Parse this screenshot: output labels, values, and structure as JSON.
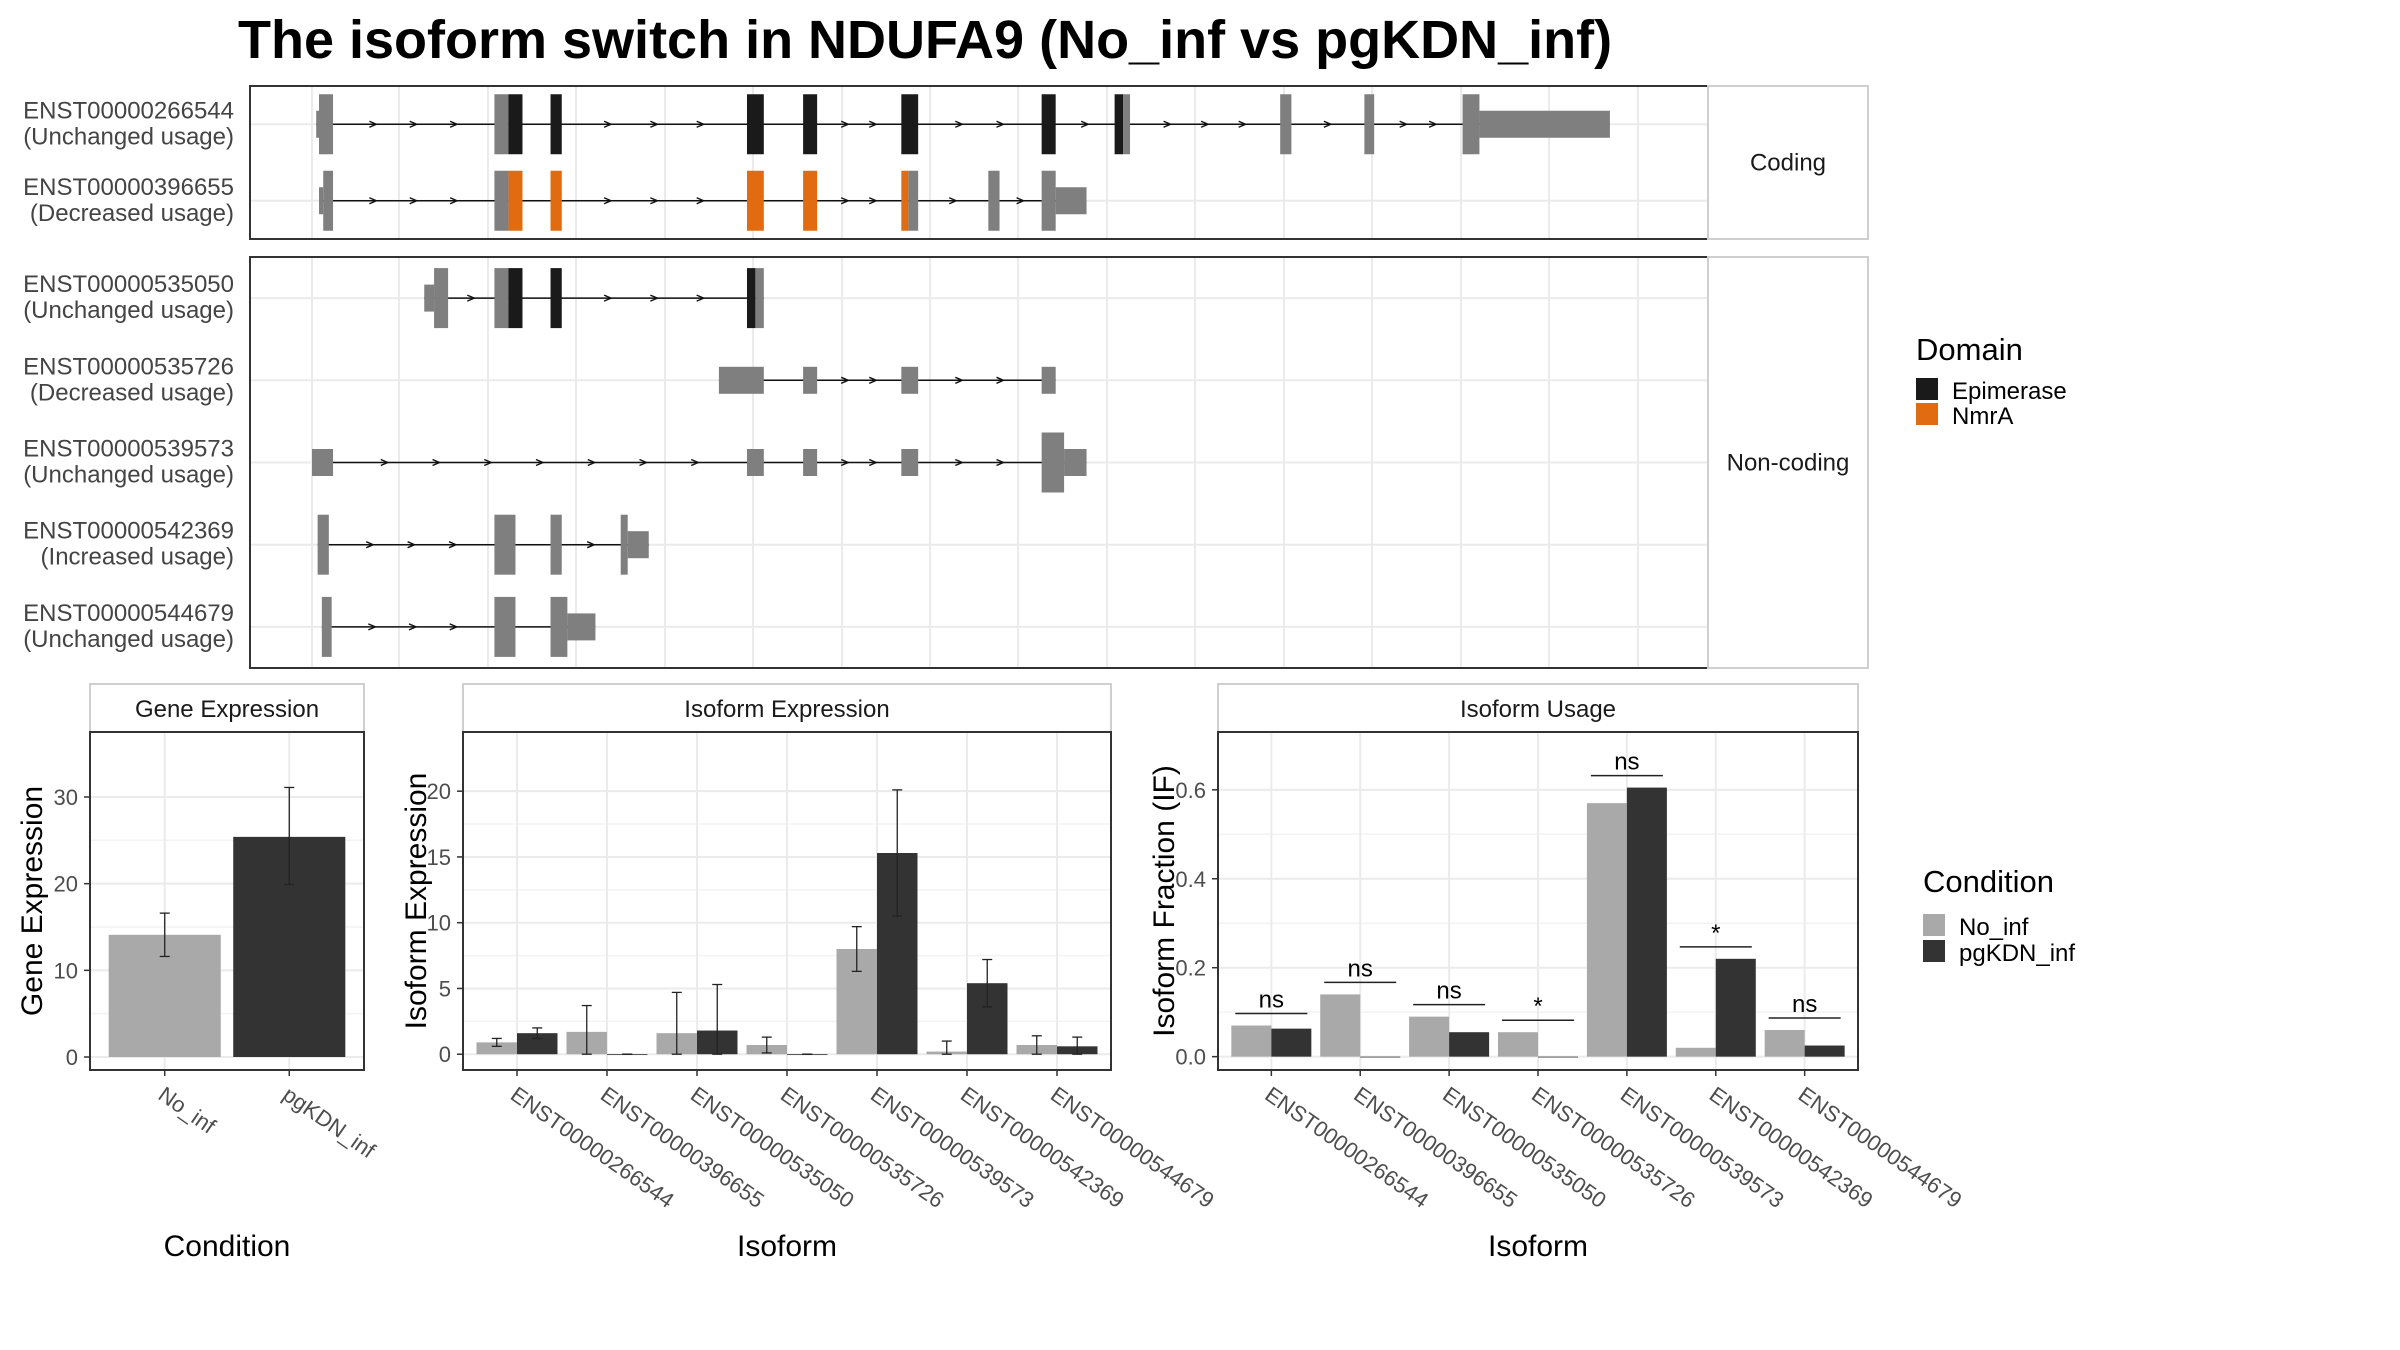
{
  "title": "The isoform switch in NDUFA9 (No_inf vs pgKDN_inf)",
  "colors": {
    "epimerase": "#1a1a1a",
    "nmra": "#e06b10",
    "exon": "#7f7f7f",
    "no_inf": "#a9a9a9",
    "pgkdn_inf": "#333333",
    "grid": "#ebebeb",
    "strip_bg": "#ffffff"
  },
  "structure": {
    "facets": [
      {
        "label": "Coding",
        "isoforms": [
          {
            "id": "ENST00000266544",
            "usage": "(Unchanged usage)",
            "exons": [
              [
                3,
                5,
                0.45
              ],
              [
                5,
                15,
                1
              ],
              [
                130,
                140,
                1
              ],
              [
                140,
                150,
                1,
                "Epimerase"
              ],
              [
                170,
                178,
                1,
                "Epimerase"
              ],
              [
                310,
                322,
                1,
                "Epimerase"
              ],
              [
                350,
                360,
                1,
                "Epimerase"
              ],
              [
                420,
                432,
                1,
                "Epimerase"
              ],
              [
                520,
                530,
                1,
                "Epimerase"
              ],
              [
                572,
                578,
                1,
                "Epimerase"
              ],
              [
                578,
                583,
                1
              ],
              [
                690,
                698,
                1
              ],
              [
                750,
                757,
                1
              ],
              [
                820,
                832,
                1
              ],
              [
                832,
                925,
                0.45
              ]
            ]
          },
          {
            "id": "ENST00000396655",
            "usage": "(Decreased usage)",
            "exons": [
              [
                5,
                8,
                0.45
              ],
              [
                8,
                15,
                1
              ],
              [
                130,
                140,
                1
              ],
              [
                140,
                150,
                1,
                "NmrA"
              ],
              [
                170,
                178,
                1,
                "NmrA"
              ],
              [
                310,
                322,
                1,
                "NmrA"
              ],
              [
                350,
                360,
                1,
                "NmrA"
              ],
              [
                420,
                425,
                1,
                "NmrA"
              ],
              [
                425,
                432,
                1
              ],
              [
                482,
                490,
                1
              ],
              [
                520,
                530,
                1
              ],
              [
                530,
                552,
                0.45
              ]
            ]
          }
        ]
      },
      {
        "label": "Non-coding",
        "isoforms": [
          {
            "id": "ENST00000535050",
            "usage": "(Unchanged usage)",
            "exons": [
              [
                80,
                87,
                0.45
              ],
              [
                87,
                97,
                1
              ],
              [
                130,
                140,
                1
              ],
              [
                140,
                150,
                1,
                "Epimerase"
              ],
              [
                170,
                178,
                1,
                "Epimerase"
              ],
              [
                310,
                316,
                1,
                "Epimerase"
              ],
              [
                316,
                322,
                1
              ]
            ]
          },
          {
            "id": "ENST00000535726",
            "usage": "(Decreased usage)",
            "exons": [
              [
                290,
                322,
                0.45
              ],
              [
                350,
                360,
                0.45
              ],
              [
                420,
                432,
                0.45
              ],
              [
                520,
                530,
                0.45
              ]
            ]
          },
          {
            "id": "ENST00000539573",
            "usage": "(Unchanged usage)",
            "exons": [
              [
                0,
                15,
                0.45
              ],
              [
                310,
                322,
                0.45
              ],
              [
                350,
                360,
                0.45
              ],
              [
                420,
                432,
                0.45
              ],
              [
                520,
                536,
                1
              ],
              [
                536,
                552,
                0.45
              ]
            ]
          },
          {
            "id": "ENST00000542369",
            "usage": "(Increased usage)",
            "exons": [
              [
                4,
                12,
                1
              ],
              [
                130,
                145,
                1
              ],
              [
                170,
                178,
                1
              ],
              [
                220,
                225,
                1
              ],
              [
                225,
                240,
                0.45
              ]
            ]
          },
          {
            "id": "ENST00000544679",
            "usage": "(Unchanged usage)",
            "exons": [
              [
                7,
                14,
                1
              ],
              [
                130,
                145,
                1
              ],
              [
                170,
                182,
                1
              ],
              [
                182,
                202,
                0.45
              ]
            ]
          }
        ]
      }
    ],
    "legend": {
      "title": "Domain",
      "items": [
        "Epimerase",
        "NmrA"
      ]
    }
  },
  "chart_data": [
    {
      "type": "bar",
      "title": "Gene Expression",
      "xlabel": "Condition",
      "ylabel": "Gene Expression",
      "categories": [
        "No_inf",
        "pgKDN_inf"
      ],
      "values": [
        14.1,
        25.4
      ],
      "errors": [
        [
          11.6,
          16.6
        ],
        [
          19.9,
          31.1
        ]
      ],
      "yticks": [
        0,
        10,
        20,
        30
      ],
      "ylim": [
        -1.5,
        37.5
      ]
    },
    {
      "type": "bar",
      "title": "Isoform Expression",
      "xlabel": "Isoform",
      "ylabel": "Isoform Expression",
      "categories": [
        "ENST00000266544",
        "ENST00000396655",
        "ENST00000535050",
        "ENST00000535726",
        "ENST00000539573",
        "ENST00000542369",
        "ENST00000544679"
      ],
      "series": [
        {
          "name": "No_inf",
          "values": [
            0.9,
            1.7,
            1.6,
            0.7,
            8.0,
            0.2,
            0.7
          ],
          "errors": [
            [
              0.6,
              1.2
            ],
            [
              0.0,
              3.7
            ],
            [
              0.0,
              4.7
            ],
            [
              0.1,
              1.3
            ],
            [
              6.3,
              9.7
            ],
            [
              0.0,
              1.0
            ],
            [
              0.0,
              1.4
            ]
          ]
        },
        {
          "name": "pgKDN_inf",
          "values": [
            1.6,
            0.0,
            1.8,
            0.0,
            15.3,
            5.4,
            0.6
          ],
          "errors": [
            [
              1.2,
              2.0
            ],
            [
              0.0,
              0.0
            ],
            [
              0.0,
              5.3
            ],
            [
              0.0,
              0.0
            ],
            [
              10.5,
              20.1
            ],
            [
              3.6,
              7.2
            ],
            [
              0.0,
              1.3
            ]
          ]
        }
      ],
      "yticks": [
        0,
        5,
        10,
        15,
        20
      ],
      "ylim": [
        -1.2,
        24.5
      ]
    },
    {
      "type": "bar",
      "title": "Isoform Usage",
      "xlabel": "Isoform",
      "ylabel": "Isoform Fraction (IF)",
      "categories": [
        "ENST00000266544",
        "ENST00000396655",
        "ENST00000535050",
        "ENST00000535726",
        "ENST00000539573",
        "ENST00000542369",
        "ENST00000544679"
      ],
      "series": [
        {
          "name": "No_inf",
          "values": [
            0.07,
            0.14,
            0.09,
            0.055,
            0.57,
            0.02,
            0.06
          ]
        },
        {
          "name": "pgKDN_inf",
          "values": [
            0.063,
            0.0,
            0.055,
            0.0,
            0.605,
            0.22,
            0.025
          ]
        }
      ],
      "significance": [
        "ns",
        "ns",
        "ns",
        "*",
        "ns",
        "*",
        "ns"
      ],
      "yticks": [
        0.0,
        0.2,
        0.4,
        0.6
      ],
      "ylim": [
        -0.03,
        0.73
      ]
    }
  ],
  "legend_condition": {
    "title": "Condition",
    "items": [
      "No_inf",
      "pgKDN_inf"
    ]
  }
}
